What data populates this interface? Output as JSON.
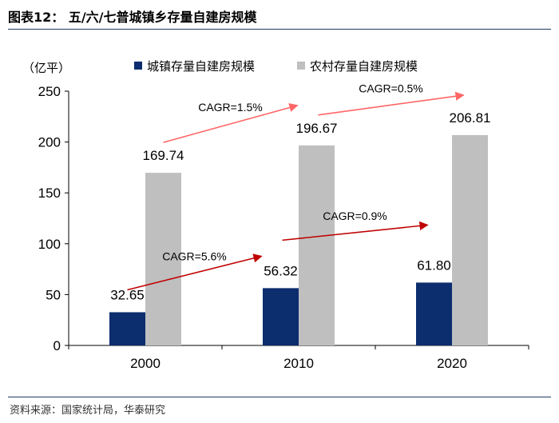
{
  "figure_title": "图表12：  五/六/七普城镇乡存量自建房规模",
  "source": "资料来源：国家统计局，华泰研究",
  "chart_data": {
    "type": "bar",
    "ylabel": "（亿平）",
    "ylim": [
      0,
      250
    ],
    "yticks": [
      0,
      50,
      100,
      150,
      200,
      250
    ],
    "categories": [
      "2000",
      "2010",
      "2020"
    ],
    "legend_position": "top",
    "grid": false,
    "series": [
      {
        "name": "城镇存量自建房规模",
        "color": "#0c2d6e",
        "values": [
          32.65,
          56.32,
          61.8
        ],
        "labels": [
          "32.65",
          "56.32",
          "61.80"
        ]
      },
      {
        "name": "农村存量自建房规模",
        "color": "#bfbfbf",
        "values": [
          169.74,
          196.67,
          206.81
        ],
        "labels": [
          "169.74",
          "196.67",
          "206.81"
        ]
      }
    ],
    "annotations": [
      {
        "text": "CAGR=1.5%",
        "series": 1,
        "from": 0,
        "to": 1,
        "color": "#ff6666"
      },
      {
        "text": "CAGR=0.5%",
        "series": 1,
        "from": 1,
        "to": 2,
        "color": "#ff6666"
      },
      {
        "text": "CAGR=5.6%",
        "series": 0,
        "from": 0,
        "to": 1,
        "color": "#c00000"
      },
      {
        "text": "CAGR=0.9%",
        "series": 0,
        "from": 1,
        "to": 2,
        "color": "#c00000"
      }
    ]
  }
}
